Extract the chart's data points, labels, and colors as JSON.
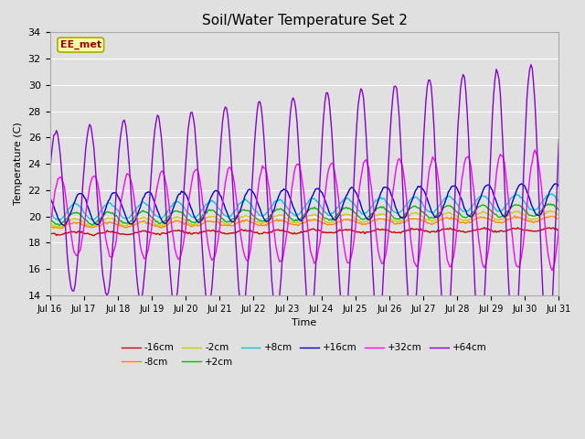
{
  "title": "Soil/Water Temperature Set 2",
  "xlabel": "Time",
  "ylabel": "Temperature (C)",
  "ylim": [
    14,
    34
  ],
  "yticks": [
    14,
    16,
    18,
    20,
    22,
    24,
    26,
    28,
    30,
    32,
    34
  ],
  "xtick_labels": [
    "Jul 16",
    "Jul 17",
    "Jul 18",
    "Jul 19",
    "Jul 20",
    "Jul 21",
    "Jul 22",
    "Jul 23",
    "Jul 24",
    "Jul 25",
    "Jul 26",
    "Jul 27",
    "Jul 28",
    "Jul 29",
    "Jul 30",
    "Jul 31"
  ],
  "annotation_text": "EE_met",
  "annotation_box_color": "#ffffaa",
  "annotation_text_color": "#990000",
  "background_color": "#e0e0e0",
  "grid_color": "#ffffff",
  "series_order": [
    "-16cm",
    "-8cm",
    "-2cm",
    "+2cm",
    "+8cm",
    "+16cm",
    "+32cm",
    "+64cm"
  ],
  "legend_order": [
    "-16cm",
    "-8cm",
    "-2cm",
    "+2cm",
    "+8cm",
    "+16cm",
    "+32cm",
    "+64cm"
  ],
  "series": {
    "-16cm": {
      "color": "#cc0000",
      "linewidth": 1.0
    },
    "-8cm": {
      "color": "#ff8800",
      "linewidth": 1.0
    },
    "-2cm": {
      "color": "#cccc00",
      "linewidth": 1.0
    },
    "+2cm": {
      "color": "#00bb00",
      "linewidth": 1.0
    },
    "+8cm": {
      "color": "#00cccc",
      "linewidth": 1.0
    },
    "+16cm": {
      "color": "#0000cc",
      "linewidth": 1.0
    },
    "+32cm": {
      "color": "#ff00ff",
      "linewidth": 1.0
    },
    "+64cm": {
      "color": "#8800cc",
      "linewidth": 1.0
    }
  }
}
